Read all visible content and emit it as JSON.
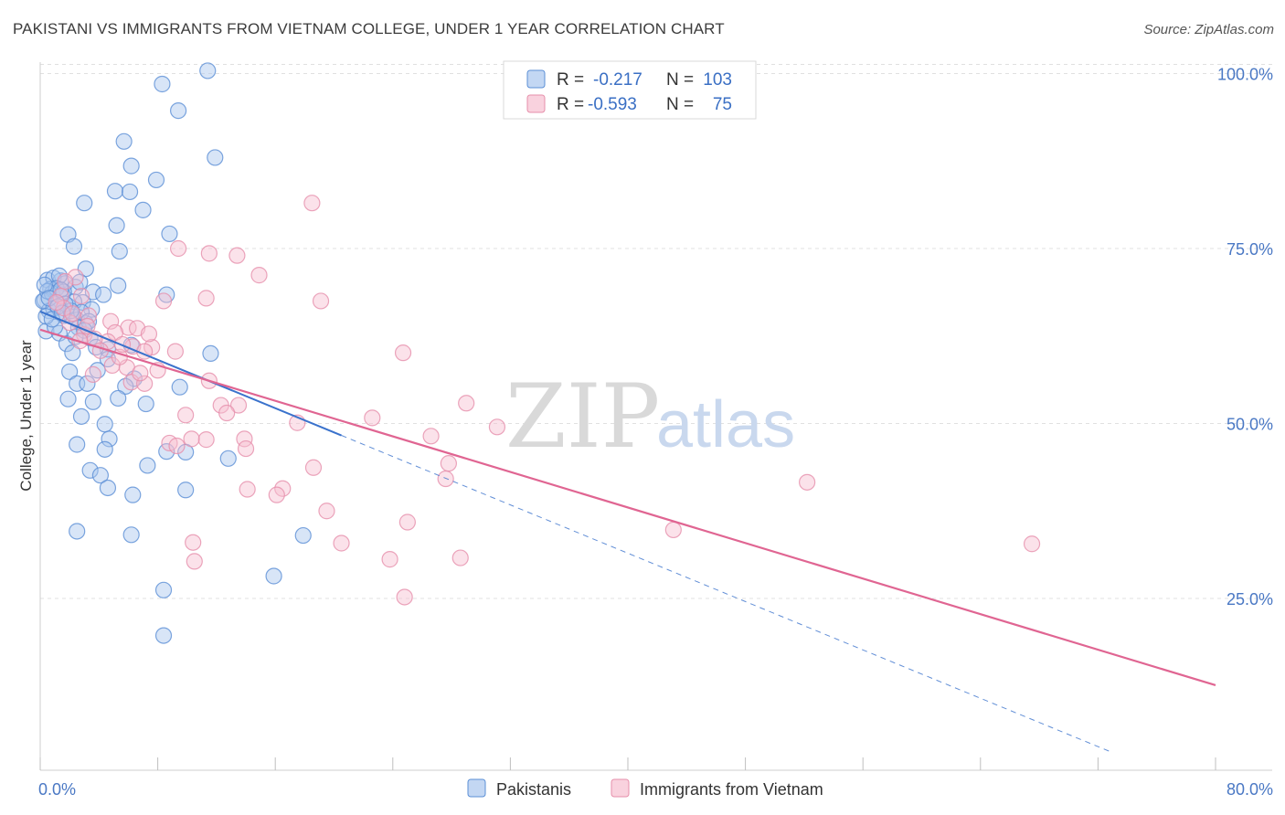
{
  "title": "PAKISTANI VS IMMIGRANTS FROM VIETNAM COLLEGE, UNDER 1 YEAR CORRELATION CHART",
  "source": "Source: ZipAtlas.com",
  "watermark": {
    "zip": "ZIP",
    "atlas": "atlas"
  },
  "colors": {
    "blue_fill": "#a9c6ee",
    "blue_stroke": "#5b8fd6",
    "blue_line": "#3a72cc",
    "pink_fill": "#f7bfd0",
    "pink_stroke": "#e68fab",
    "pink_line": "#e06592",
    "grid": "#e0e0e0",
    "tick_text": "#4a78c4"
  },
  "legend": {
    "rows": [
      {
        "r_label": "R =",
        "r_value": "-0.217",
        "n_label": "N =",
        "n_value": "103"
      },
      {
        "r_label": "R =",
        "r_value": "-0.593",
        "n_label": "N =",
        "n_value": "75"
      }
    ]
  },
  "chart_data": {
    "type": "scatter",
    "title": "PAKISTANI VS IMMIGRANTS FROM VIETNAM COLLEGE, UNDER 1 YEAR CORRELATION CHART",
    "xlabel": "",
    "ylabel": "College, Under 1 year",
    "xlim": [
      0,
      80
    ],
    "ylim": [
      0,
      102
    ],
    "x_tick_labels": [
      "0.0%",
      "80.0%"
    ],
    "y_ticks": [
      25,
      50,
      75,
      100
    ],
    "y_tick_labels": [
      "25.0%",
      "50.0%",
      "75.0%",
      "100.0%"
    ],
    "grid": true,
    "legend_position": "bottom",
    "series": [
      {
        "name": "Pakistanis",
        "color": "blue",
        "trend": {
          "x0": 0,
          "y0": 66,
          "x1": 20.5,
          "y1": 48.3,
          "dash_to_x": 73
        },
        "points": [
          [
            11.4,
            100.4
          ],
          [
            8.3,
            98.5
          ],
          [
            9.4,
            94.7
          ],
          [
            5.7,
            90.3
          ],
          [
            6.2,
            86.8
          ],
          [
            11.9,
            88
          ],
          [
            7.9,
            84.8
          ],
          [
            5.1,
            83.2
          ],
          [
            6.1,
            83.1
          ],
          [
            3,
            81.5
          ],
          [
            7,
            80.5
          ],
          [
            5.2,
            78.3
          ],
          [
            8.8,
            77.1
          ],
          [
            1.9,
            77
          ],
          [
            2.3,
            75.3
          ],
          [
            5.4,
            74.6
          ],
          [
            3.1,
            72.1
          ],
          [
            0.5,
            70.5
          ],
          [
            1.4,
            70.4
          ],
          [
            0.9,
            70.8
          ],
          [
            1.7,
            70
          ],
          [
            1.3,
            71.1
          ],
          [
            3.6,
            68.8
          ],
          [
            5.3,
            69.7
          ],
          [
            2.4,
            69.5
          ],
          [
            0.7,
            69.2
          ],
          [
            0.3,
            67.6
          ],
          [
            1.5,
            68.4
          ],
          [
            1.2,
            67.1
          ],
          [
            2.9,
            67.3
          ],
          [
            4.3,
            68.4
          ],
          [
            8.6,
            68.4
          ],
          [
            0.6,
            66.1
          ],
          [
            3.5,
            66.3
          ],
          [
            1.6,
            65.4
          ],
          [
            2.1,
            65.5
          ],
          [
            2.5,
            64.8
          ],
          [
            3.1,
            64.3
          ],
          [
            0.4,
            63.2
          ],
          [
            1.3,
            62.9
          ],
          [
            1.8,
            61.4
          ],
          [
            3.4,
            62.2
          ],
          [
            4.6,
            60.6
          ],
          [
            2.2,
            60.1
          ],
          [
            6.2,
            61.2
          ],
          [
            11.6,
            60
          ],
          [
            4.6,
            59.2
          ],
          [
            2,
            57.4
          ],
          [
            3.9,
            57.6
          ],
          [
            6.4,
            56.4
          ],
          [
            2.5,
            55.7
          ],
          [
            3.2,
            55.7
          ],
          [
            5.8,
            55.3
          ],
          [
            9.5,
            55.2
          ],
          [
            1.9,
            53.5
          ],
          [
            3.6,
            53.1
          ],
          [
            5.3,
            53.6
          ],
          [
            7.2,
            52.8
          ],
          [
            2.8,
            51
          ],
          [
            4.4,
            49.9
          ],
          [
            4.7,
            47.8
          ],
          [
            2.5,
            47
          ],
          [
            4.4,
            46.3
          ],
          [
            8.6,
            46
          ],
          [
            9.9,
            45.9
          ],
          [
            12.8,
            45
          ],
          [
            7.3,
            44
          ],
          [
            3.4,
            43.3
          ],
          [
            4.1,
            42.6
          ],
          [
            4.6,
            40.8
          ],
          [
            6.3,
            39.8
          ],
          [
            9.9,
            40.5
          ],
          [
            2.5,
            34.6
          ],
          [
            6.2,
            34.1
          ],
          [
            17.9,
            34
          ],
          [
            15.9,
            28.2
          ],
          [
            8.4,
            26.2
          ],
          [
            8.4,
            19.7
          ],
          [
            0.2,
            67.5
          ],
          [
            0.8,
            68.6
          ],
          [
            1.1,
            69.3
          ],
          [
            2.7,
            70.2
          ],
          [
            0.5,
            68.9
          ],
          [
            1.9,
            66.8
          ],
          [
            2.6,
            63.7
          ],
          [
            3.8,
            60.9
          ],
          [
            0.9,
            66.4
          ],
          [
            1.6,
            68.8
          ],
          [
            2.3,
            67.4
          ],
          [
            0.3,
            69.8
          ],
          [
            1.4,
            69.1
          ],
          [
            2.8,
            65.9
          ],
          [
            0.6,
            67.9
          ],
          [
            1,
            63.8
          ],
          [
            2.1,
            66.1
          ],
          [
            3.3,
            64.6
          ],
          [
            1.7,
            67.1
          ],
          [
            0.4,
            65.3
          ],
          [
            2.4,
            62.4
          ],
          [
            1.2,
            66.7
          ],
          [
            0.8,
            64.9
          ],
          [
            3,
            63.3
          ],
          [
            1.5,
            65.8
          ]
        ]
      },
      {
        "name": "Immigrants from Vietnam",
        "color": "pink",
        "trend": {
          "x0": 0,
          "y0": 63.4,
          "x1": 80,
          "y1": 12.6
        },
        "points": [
          [
            18.5,
            81.5
          ],
          [
            9.4,
            75
          ],
          [
            11.5,
            74.3
          ],
          [
            13.4,
            74
          ],
          [
            14.9,
            71.2
          ],
          [
            2.4,
            70.9
          ],
          [
            1.7,
            70.3
          ],
          [
            1.4,
            68.2
          ],
          [
            2.8,
            68.2
          ],
          [
            11.3,
            67.9
          ],
          [
            8.4,
            67.5
          ],
          [
            19.1,
            67.5
          ],
          [
            1.6,
            66.5
          ],
          [
            3.3,
            65.4
          ],
          [
            2,
            64.4
          ],
          [
            4.8,
            64.6
          ],
          [
            6,
            63.7
          ],
          [
            6.6,
            63.6
          ],
          [
            5.1,
            63
          ],
          [
            3,
            62.7
          ],
          [
            4.6,
            61.7
          ],
          [
            6.3,
            61
          ],
          [
            7.6,
            60.9
          ],
          [
            7.1,
            60.3
          ],
          [
            9.2,
            60.3
          ],
          [
            24.7,
            60.1
          ],
          [
            4.9,
            58.3
          ],
          [
            5.9,
            58
          ],
          [
            8,
            57.6
          ],
          [
            3.6,
            57
          ],
          [
            11.5,
            56.1
          ],
          [
            6.2,
            55.9
          ],
          [
            7.1,
            55.7
          ],
          [
            12.3,
            52.6
          ],
          [
            13.5,
            52.6
          ],
          [
            12.7,
            51.5
          ],
          [
            29,
            52.9
          ],
          [
            9.9,
            51.2
          ],
          [
            22.6,
            50.8
          ],
          [
            17.5,
            50.1
          ],
          [
            31.1,
            49.5
          ],
          [
            13.9,
            47.8
          ],
          [
            11.3,
            47.7
          ],
          [
            26.6,
            48.2
          ],
          [
            10.3,
            47.8
          ],
          [
            8.8,
            47.2
          ],
          [
            9.3,
            46.8
          ],
          [
            14,
            46.4
          ],
          [
            27.8,
            44.3
          ],
          [
            18.6,
            43.7
          ],
          [
            27.6,
            42.1
          ],
          [
            52.2,
            41.6
          ],
          [
            14.1,
            40.6
          ],
          [
            16.5,
            40.7
          ],
          [
            16.1,
            39.8
          ],
          [
            19.5,
            37.5
          ],
          [
            25,
            35.9
          ],
          [
            43.1,
            34.8
          ],
          [
            20.5,
            32.9
          ],
          [
            10.4,
            33
          ],
          [
            67.5,
            32.8
          ],
          [
            23.8,
            30.6
          ],
          [
            10.5,
            30.3
          ],
          [
            28.6,
            30.8
          ],
          [
            24.8,
            25.2
          ],
          [
            3.7,
            62.1
          ],
          [
            5.4,
            59.5
          ],
          [
            2.2,
            65.7
          ],
          [
            4.1,
            60.4
          ],
          [
            1.1,
            67.3
          ],
          [
            6.8,
            57.2
          ],
          [
            3.2,
            63.9
          ],
          [
            2.7,
            61.8
          ],
          [
            5.6,
            61.3
          ],
          [
            7.4,
            62.8
          ]
        ]
      }
    ]
  }
}
